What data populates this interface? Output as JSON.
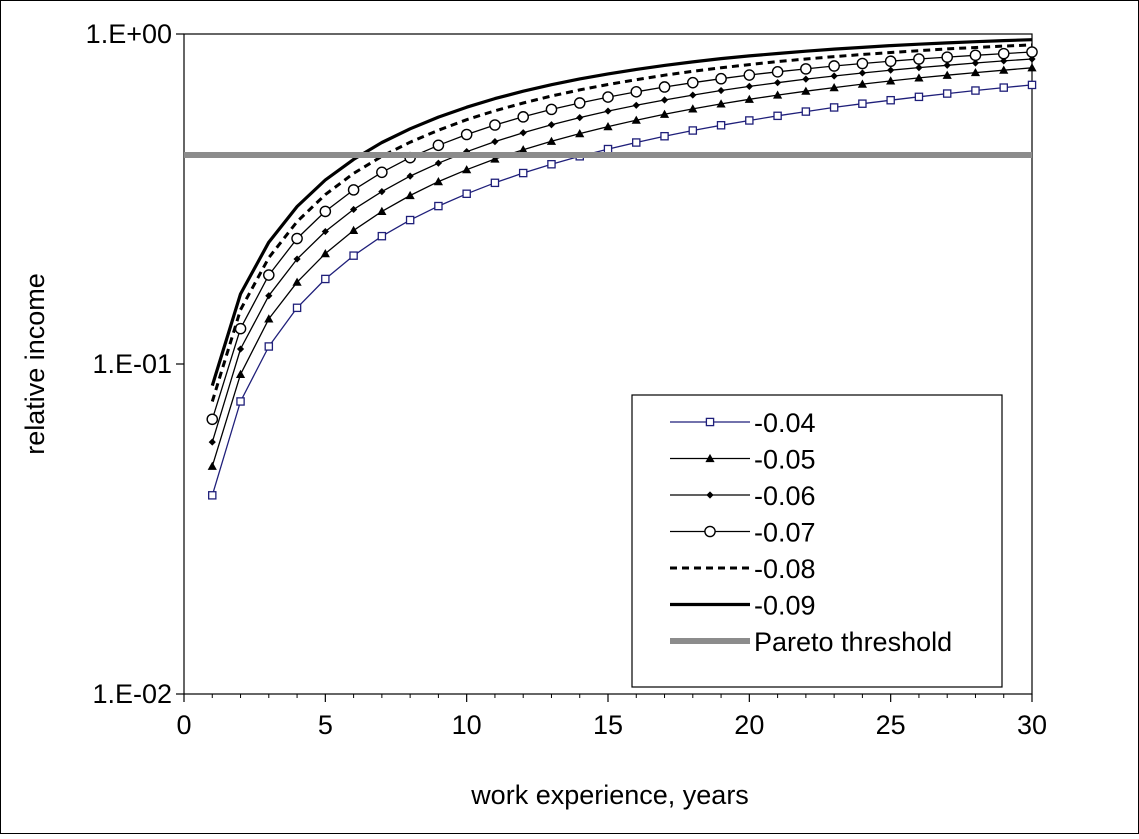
{
  "chart_data": {
    "type": "line",
    "title": "",
    "xlabel": "work experience, years",
    "ylabel": "relative income",
    "xlim": [
      0,
      30
    ],
    "ylim": [
      0.01,
      1
    ],
    "yscale": "log",
    "x_ticks": [
      0,
      5,
      10,
      15,
      20,
      25,
      30
    ],
    "x_tick_labels": [
      "0",
      "5",
      "10",
      "15",
      "20",
      "25",
      "30"
    ],
    "y_ticks": [
      0.01,
      0.1,
      1
    ],
    "y_tick_labels": [
      "1.E-02",
      "1.E-01",
      "1.E+00"
    ],
    "grid": false,
    "legend_position": "bottom-right",
    "x": [
      1,
      2,
      3,
      4,
      5,
      6,
      7,
      8,
      9,
      10,
      11,
      12,
      13,
      14,
      15,
      16,
      17,
      18,
      19,
      20,
      21,
      22,
      23,
      24,
      25,
      26,
      27,
      28,
      29,
      30
    ],
    "series": [
      {
        "name": "-0.04",
        "color": "#1f1f7a",
        "marker": "square-open",
        "line": "solid",
        "values": [
          0.04,
          0.077,
          0.113,
          0.148,
          0.181,
          0.213,
          0.244,
          0.273,
          0.301,
          0.328,
          0.354,
          0.379,
          0.403,
          0.426,
          0.448,
          0.469,
          0.49,
          0.51,
          0.529,
          0.547,
          0.565,
          0.582,
          0.599,
          0.615,
          0.63,
          0.645,
          0.66,
          0.674,
          0.688,
          0.701
        ]
      },
      {
        "name": "-0.05",
        "color": "#000000",
        "marker": "triangle-filled",
        "line": "solid",
        "values": [
          0.049,
          0.093,
          0.137,
          0.177,
          0.216,
          0.254,
          0.29,
          0.324,
          0.357,
          0.388,
          0.418,
          0.446,
          0.473,
          0.499,
          0.524,
          0.548,
          0.571,
          0.593,
          0.614,
          0.634,
          0.653,
          0.671,
          0.688,
          0.705,
          0.721,
          0.736,
          0.75,
          0.764,
          0.777,
          0.79
        ]
      },
      {
        "name": "-0.06",
        "color": "#000000",
        "marker": "diamond-filled",
        "line": "solid",
        "values": [
          0.058,
          0.111,
          0.161,
          0.208,
          0.252,
          0.294,
          0.333,
          0.371,
          0.406,
          0.44,
          0.472,
          0.502,
          0.531,
          0.558,
          0.584,
          0.608,
          0.631,
          0.653,
          0.674,
          0.694,
          0.712,
          0.73,
          0.746,
          0.762,
          0.777,
          0.791,
          0.804,
          0.817,
          0.829,
          0.84
        ]
      },
      {
        "name": "-0.07",
        "color": "#000000",
        "marker": "circle-open",
        "line": "solid",
        "values": [
          0.068,
          0.128,
          0.186,
          0.24,
          0.29,
          0.337,
          0.381,
          0.422,
          0.46,
          0.496,
          0.53,
          0.561,
          0.591,
          0.618,
          0.644,
          0.668,
          0.691,
          0.712,
          0.732,
          0.751,
          0.768,
          0.784,
          0.8,
          0.814,
          0.827,
          0.84,
          0.851,
          0.862,
          0.872,
          0.882
        ]
      },
      {
        "name": "-0.08",
        "color": "#000000",
        "marker": "none",
        "line": "dashed",
        "values": [
          0.077,
          0.146,
          0.21,
          0.27,
          0.326,
          0.378,
          0.426,
          0.47,
          0.511,
          0.55,
          0.585,
          0.618,
          0.649,
          0.677,
          0.703,
          0.727,
          0.75,
          0.771,
          0.79,
          0.808,
          0.825,
          0.84,
          0.854,
          0.867,
          0.879,
          0.89,
          0.901,
          0.91,
          0.919,
          0.927
        ]
      },
      {
        "name": "-0.09",
        "color": "#000000",
        "marker": "none",
        "line": "solid-thick",
        "values": [
          0.086,
          0.163,
          0.234,
          0.3,
          0.361,
          0.417,
          0.469,
          0.516,
          0.56,
          0.6,
          0.637,
          0.671,
          0.702,
          0.731,
          0.757,
          0.781,
          0.803,
          0.823,
          0.842,
          0.858,
          0.873,
          0.887,
          0.9,
          0.911,
          0.922,
          0.931,
          0.94,
          0.948,
          0.955,
          0.961
        ]
      },
      {
        "name": "Pareto threshold",
        "color": "#8c8c8c",
        "marker": "none",
        "line": "solid-wide",
        "values": [
          0.43,
          0.43,
          0.43,
          0.43,
          0.43,
          0.43,
          0.43,
          0.43,
          0.43,
          0.43,
          0.43,
          0.43,
          0.43,
          0.43,
          0.43,
          0.43,
          0.43,
          0.43,
          0.43,
          0.43,
          0.43,
          0.43,
          0.43,
          0.43,
          0.43,
          0.43,
          0.43,
          0.43,
          0.43,
          0.43
        ]
      }
    ]
  }
}
